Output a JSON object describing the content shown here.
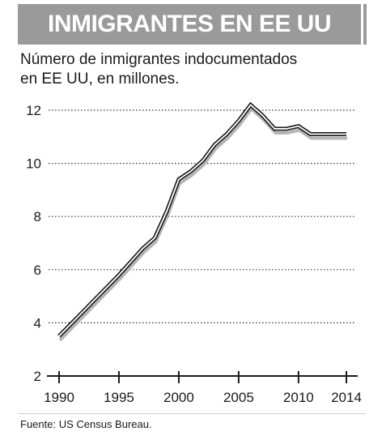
{
  "header": {
    "title": "INMIGRANTES EN EE UU"
  },
  "subtitle_lines": [
    "Número de inmigrantes indocumentados",
    "en EE UU, en millones."
  ],
  "source": "Fuente: US Census Bureau.",
  "colors": {
    "header_bg": "#9a9a9a",
    "line": "#1a1a1a",
    "shadow": "#b5b5b5",
    "grid": "#333333"
  },
  "chart_data": {
    "type": "line",
    "title": "Número de inmigrantes indocumentados en EE UU, en millones.",
    "xlabel": "",
    "ylabel": "",
    "xlim": [
      1990,
      2014
    ],
    "ylim": [
      2,
      12
    ],
    "grid": true,
    "x_ticks": [
      1990,
      1995,
      2000,
      2005,
      2010,
      2014
    ],
    "y_ticks": [
      2,
      4,
      6,
      8,
      10,
      12
    ],
    "series": [
      {
        "x": [
          1990,
          1995,
          1997,
          1998,
          1999,
          2000,
          2001,
          2002,
          2003,
          2004,
          2005,
          2006,
          2007,
          2008,
          2009,
          2010,
          2011,
          2012,
          2013,
          2014
        ],
        "values": [
          3.5,
          5.8,
          6.8,
          7.2,
          8.2,
          9.4,
          9.7,
          10.1,
          10.7,
          11.1,
          11.6,
          12.2,
          11.8,
          11.3,
          11.3,
          11.4,
          11.1,
          11.1,
          11.1,
          11.1
        ]
      }
    ]
  }
}
